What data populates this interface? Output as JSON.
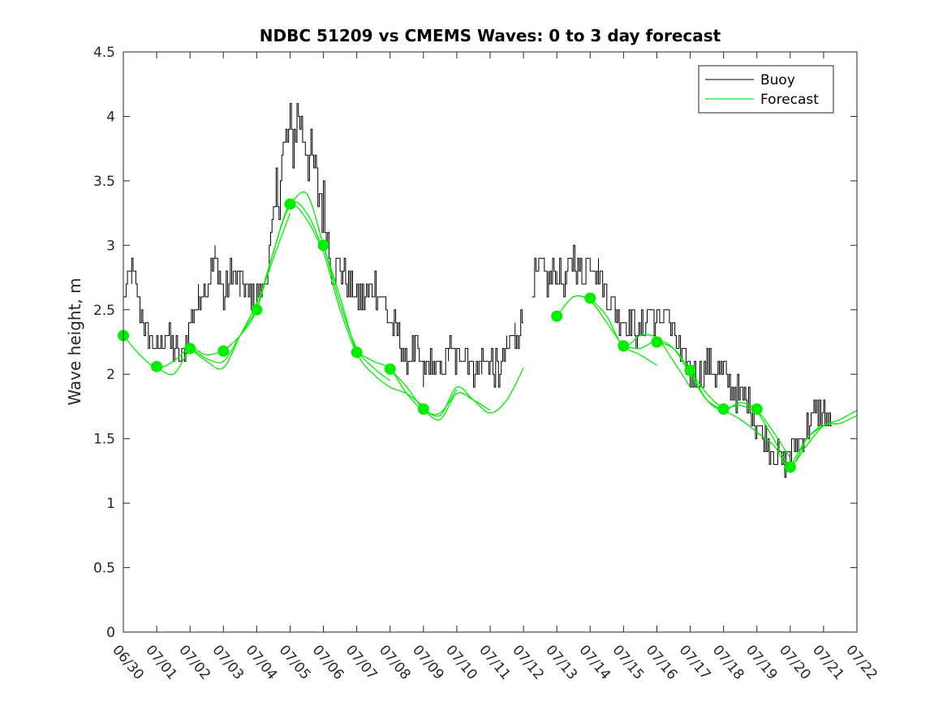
{
  "chart_data": {
    "type": "line",
    "title": "NDBC 51209 vs CMEMS Waves: 0 to 3 day forecast",
    "xlabel": "",
    "ylabel": "Wave height, m",
    "ylim": [
      0,
      4.5
    ],
    "yticks": [
      "0",
      "0.5",
      "1",
      "1.5",
      "2",
      "2.5",
      "3",
      "3.5",
      "4",
      "4.5"
    ],
    "xlim_days": [
      0,
      22
    ],
    "xtick_labels": [
      "06/30",
      "07/01",
      "07/02",
      "07/03",
      "07/04",
      "07/05",
      "07/06",
      "07/07",
      "07/08",
      "07/09",
      "07/10",
      "07/11",
      "07/12",
      "07/13",
      "07/14",
      "07/15",
      "07/16",
      "07/17",
      "07/18",
      "07/19",
      "07/20",
      "07/21",
      "07/22"
    ],
    "legend": {
      "position": "top-right",
      "entries": [
        {
          "label": "Buoy",
          "color": "#000000"
        },
        {
          "label": "Forecast",
          "color": "#00ee00"
        }
      ]
    },
    "buoy_color": "#000000",
    "forecast_color": "#00ee00",
    "buoy_segments": [
      {
        "x": [
          0,
          0.25,
          0.5,
          0.75,
          1.0,
          1.25,
          1.5,
          1.75,
          2.0,
          2.25,
          2.5,
          2.75,
          3.0,
          3.25,
          3.5,
          3.75,
          4.0,
          4.25,
          4.5,
          4.75,
          5.0,
          5.25,
          5.5,
          5.75,
          6.0,
          6.25,
          6.5,
          6.75,
          7.0,
          7.25,
          7.5,
          7.75,
          8.0,
          8.25,
          8.5,
          8.75,
          9.0,
          9.25,
          9.5,
          9.75,
          10.0,
          10.25,
          10.5,
          10.75,
          11.0,
          11.25,
          11.5,
          11.75,
          12.0
        ],
        "y": [
          2.6,
          2.8,
          2.5,
          2.3,
          2.2,
          2.3,
          2.2,
          2.1,
          2.4,
          2.6,
          2.7,
          2.9,
          2.6,
          2.8,
          2.7,
          2.6,
          2.6,
          2.7,
          3.2,
          3.7,
          3.8,
          4.0,
          3.8,
          3.5,
          3.3,
          2.8,
          2.8,
          2.7,
          2.6,
          2.6,
          2.7,
          2.6,
          2.4,
          2.3,
          2.1,
          2.2,
          2.0,
          2.1,
          2.0,
          2.2,
          2.1,
          2.2,
          2.0,
          2.1,
          2.1,
          2.0,
          2.2,
          2.3,
          2.4
        ]
      },
      {
        "x": [
          12.25,
          12.5,
          12.75,
          13.0,
          13.25,
          13.5,
          13.75,
          14.0,
          14.25,
          14.5,
          14.75,
          15.0,
          15.25,
          15.5,
          15.75,
          16.0,
          16.25,
          16.5,
          16.75,
          17.0,
          17.25,
          17.5,
          17.75,
          18.0,
          18.25,
          18.5,
          18.75,
          19.0,
          19.25,
          19.5,
          19.75,
          20.0,
          20.25,
          20.5,
          20.75,
          21.0,
          21.25
        ],
        "y": [
          2.7,
          2.8,
          2.7,
          2.8,
          2.7,
          2.9,
          2.8,
          2.9,
          2.8,
          2.6,
          2.5,
          2.4,
          2.4,
          2.3,
          2.5,
          2.4,
          2.5,
          2.3,
          2.1,
          2.0,
          2.0,
          2.1,
          2.0,
          2.0,
          1.9,
          1.8,
          1.8,
          1.6,
          1.5,
          1.4,
          1.3,
          1.4,
          1.5,
          1.6,
          1.7,
          1.7,
          1.6
        ]
      }
    ],
    "forecast_series": [
      {
        "x": [
          0,
          0.5,
          1.0,
          1.5,
          2.0,
          2.5,
          3.0
        ],
        "y": [
          2.3,
          2.15,
          2.05,
          2.1,
          2.2,
          2.15,
          2.18
        ]
      },
      {
        "x": [
          1.0,
          1.5,
          2.0,
          2.5,
          3.0,
          3.5,
          4.0
        ],
        "y": [
          2.06,
          2.0,
          2.18,
          2.12,
          2.1,
          2.3,
          2.5
        ]
      },
      {
        "x": [
          2.0,
          2.5,
          3.0,
          3.5,
          4.0,
          4.5,
          5.0
        ],
        "y": [
          2.2,
          2.1,
          2.05,
          2.3,
          2.55,
          2.9,
          3.25
        ]
      },
      {
        "x": [
          3.0,
          3.5,
          4.0,
          4.5,
          5.0,
          5.5,
          6.0
        ],
        "y": [
          2.18,
          2.3,
          2.5,
          2.95,
          3.3,
          3.2,
          2.95
        ]
      },
      {
        "x": [
          4.0,
          4.5,
          5.0,
          5.5,
          6.0,
          6.5,
          7.0
        ],
        "y": [
          2.5,
          2.95,
          3.32,
          3.25,
          2.95,
          2.5,
          2.15
        ]
      },
      {
        "x": [
          5.0,
          5.5,
          6.0,
          6.5,
          7.0,
          7.5,
          8.0
        ],
        "y": [
          3.32,
          3.4,
          3.0,
          2.55,
          2.2,
          2.05,
          1.95
        ]
      },
      {
        "x": [
          6.0,
          6.5,
          7.0,
          7.5,
          8.0,
          8.5,
          9.0
        ],
        "y": [
          3.0,
          2.6,
          2.17,
          2.0,
          1.9,
          1.85,
          1.75
        ]
      },
      {
        "x": [
          7.0,
          7.5,
          8.0,
          8.5,
          9.0,
          9.5,
          10.0
        ],
        "y": [
          2.17,
          2.1,
          2.04,
          1.85,
          1.72,
          1.7,
          1.88
        ]
      },
      {
        "x": [
          8.0,
          8.5,
          9.0,
          9.5,
          10.0,
          10.5,
          11.0
        ],
        "y": [
          2.04,
          1.9,
          1.73,
          1.65,
          1.85,
          1.8,
          1.72
        ]
      },
      {
        "x": [
          9.0,
          9.5,
          10.0,
          10.5,
          11.0,
          11.5,
          12.0
        ],
        "y": [
          1.73,
          1.68,
          1.9,
          1.8,
          1.7,
          1.8,
          2.05
        ]
      },
      {
        "x": [
          13.0,
          13.5,
          14.0,
          14.5,
          15.0,
          15.5,
          16.0
        ],
        "y": [
          2.45,
          2.6,
          2.57,
          2.4,
          2.22,
          2.15,
          2.07
        ]
      },
      {
        "x": [
          14.0,
          14.5,
          15.0,
          15.5,
          16.0,
          16.5,
          17.0
        ],
        "y": [
          2.59,
          2.45,
          2.22,
          2.3,
          2.28,
          2.1,
          1.9
        ]
      },
      {
        "x": [
          15.0,
          15.5,
          16.0,
          16.5,
          17.0,
          17.5,
          18.0
        ],
        "y": [
          2.22,
          2.2,
          2.26,
          2.2,
          2.0,
          1.8,
          1.72
        ]
      },
      {
        "x": [
          16.0,
          16.5,
          17.0,
          17.5,
          18.0,
          18.5,
          19.0
        ],
        "y": [
          2.25,
          2.2,
          2.03,
          1.85,
          1.74,
          1.76,
          1.7
        ]
      },
      {
        "x": [
          17.0,
          17.5,
          18.0,
          18.5,
          19.0,
          19.5,
          20.0
        ],
        "y": [
          2.03,
          1.8,
          1.72,
          1.78,
          1.72,
          1.55,
          1.35
        ]
      },
      {
        "x": [
          18.0,
          18.5,
          19.0,
          19.5,
          20.0,
          20.5,
          21.0
        ],
        "y": [
          1.72,
          1.65,
          1.55,
          1.45,
          1.28,
          1.5,
          1.62
        ]
      },
      {
        "x": [
          19.0,
          19.5,
          20.0,
          20.5,
          21.0,
          21.5,
          22.0
        ],
        "y": [
          1.72,
          1.5,
          1.3,
          1.45,
          1.6,
          1.62,
          1.68
        ]
      },
      {
        "x": [
          20.0,
          20.5,
          21.0,
          21.5,
          22.0
        ],
        "y": [
          1.28,
          1.5,
          1.6,
          1.65,
          1.72
        ]
      }
    ],
    "forecast_markers": {
      "x": [
        0,
        1,
        2,
        3,
        4,
        5,
        6,
        7,
        8,
        9,
        13,
        14,
        15,
        16,
        17,
        18,
        19,
        20
      ],
      "y": [
        2.3,
        2.06,
        2.2,
        2.18,
        2.5,
        3.32,
        3.0,
        2.17,
        2.04,
        1.73,
        2.45,
        2.59,
        2.22,
        2.25,
        2.03,
        1.73,
        1.73,
        1.28
      ]
    }
  }
}
